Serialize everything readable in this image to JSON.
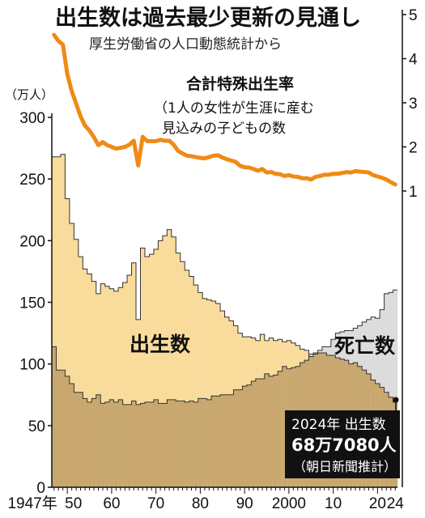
{
  "title": "出生数は過去最少更新の見通し",
  "subtitle": "厚生労働省の人口動態統計から",
  "chart_data": {
    "type": "bar",
    "y_unit_label": "（万人）",
    "y_left_ticks": [
      "0",
      "50",
      "100",
      "150",
      "200",
      "250",
      "300"
    ],
    "ylim_left": [
      0,
      300
    ],
    "y_right_ticks": [
      "1",
      "2",
      "3",
      "4",
      "5"
    ],
    "ylim_right": [
      1,
      5
    ],
    "x_tick_labels": [
      {
        "year": 1947,
        "label": "1947年"
      },
      {
        "year": 1950,
        "label": "50"
      },
      {
        "year": 1960,
        "label": "60"
      },
      {
        "year": 1970,
        "label": "70"
      },
      {
        "year": 1980,
        "label": "80"
      },
      {
        "year": 1990,
        "label": "90"
      },
      {
        "year": 2000,
        "label": "2000"
      },
      {
        "year": 2010,
        "label": "10"
      },
      {
        "year": 2020,
        "label": "20"
      },
      {
        "year": 2024,
        "label": "24"
      }
    ],
    "xlim": [
      1947,
      2024
    ],
    "grid": false,
    "years": [
      1947,
      1948,
      1949,
      1950,
      1951,
      1952,
      1953,
      1954,
      1955,
      1956,
      1957,
      1958,
      1959,
      1960,
      1961,
      1962,
      1963,
      1964,
      1965,
      1966,
      1967,
      1968,
      1969,
      1970,
      1971,
      1972,
      1973,
      1974,
      1975,
      1976,
      1977,
      1978,
      1979,
      1980,
      1981,
      1982,
      1983,
      1984,
      1985,
      1986,
      1987,
      1988,
      1989,
      1990,
      1991,
      1992,
      1993,
      1994,
      1995,
      1996,
      1997,
      1998,
      1999,
      2000,
      2001,
      2002,
      2003,
      2004,
      2005,
      2006,
      2007,
      2008,
      2009,
      2010,
      2011,
      2012,
      2013,
      2014,
      2015,
      2016,
      2017,
      2018,
      2019,
      2020,
      2021,
      2022,
      2023,
      2024
    ],
    "series": [
      {
        "name": "出生数",
        "color": "#f9dc9b",
        "values": [
          268,
          268,
          270,
          234,
          214,
          201,
          187,
          177,
          173,
          167,
          157,
          165,
          163,
          161,
          159,
          162,
          166,
          172,
          182,
          136,
          194,
          187,
          189,
          193,
          200,
          204,
          209,
          203,
          190,
          183,
          176,
          171,
          164,
          158,
          153,
          152,
          151,
          149,
          143,
          138,
          135,
          131,
          125,
          122,
          122,
          121,
          119,
          124,
          119,
          121,
          119,
          120,
          118,
          119,
          117,
          115,
          112,
          111,
          106,
          109,
          109,
          109,
          107,
          107,
          105,
          104,
          103,
          100,
          101,
          98,
          95,
          92,
          87,
          84,
          81,
          77,
          73,
          69
        ]
      },
      {
        "name": "死亡数",
        "color": "#dcdcdc",
        "values": [
          114,
          95,
          95,
          90,
          84,
          77,
          77,
          72,
          69,
          72,
          75,
          68,
          69,
          71,
          69,
          71,
          67,
          67,
          70,
          67,
          68,
          69,
          69,
          71,
          68,
          68,
          71,
          71,
          70,
          70,
          69,
          70,
          69,
          72,
          72,
          71,
          74,
          74,
          75,
          75,
          75,
          79,
          79,
          82,
          83,
          86,
          88,
          88,
          92,
          90,
          91,
          94,
          98,
          96,
          97,
          98,
          101,
          103,
          108,
          108,
          111,
          114,
          114,
          120,
          125,
          126,
          127,
          127,
          129,
          131,
          134,
          136,
          138,
          137,
          144,
          157,
          158,
          160
        ]
      },
      {
        "name": "合計特殊出生率",
        "axis": "right",
        "color": "#f08a16",
        "values": [
          4.54,
          4.4,
          4.32,
          3.65,
          3.26,
          2.98,
          2.69,
          2.48,
          2.37,
          2.22,
          2.04,
          2.11,
          2.04,
          2.0,
          1.96,
          1.98,
          2.0,
          2.05,
          2.14,
          1.58,
          2.23,
          2.13,
          2.13,
          2.13,
          2.16,
          2.14,
          2.14,
          2.05,
          1.91,
          1.85,
          1.8,
          1.79,
          1.77,
          1.75,
          1.74,
          1.77,
          1.8,
          1.81,
          1.76,
          1.72,
          1.69,
          1.66,
          1.57,
          1.54,
          1.53,
          1.5,
          1.46,
          1.5,
          1.42,
          1.43,
          1.39,
          1.38,
          1.34,
          1.36,
          1.33,
          1.32,
          1.29,
          1.29,
          1.26,
          1.32,
          1.34,
          1.37,
          1.37,
          1.39,
          1.39,
          1.41,
          1.43,
          1.42,
          1.45,
          1.44,
          1.43,
          1.42,
          1.36,
          1.33,
          1.3,
          1.26,
          1.2,
          1.15
        ]
      }
    ],
    "labels": {
      "births": "出生数",
      "deaths": "死亡数",
      "tfr": "合計特殊出生率",
      "tfr_note_line1": "（1人の女性が生涯に産む",
      "tfr_note_line2": "見込みの子どもの数"
    },
    "annotation": {
      "line1": "2024年 出生数",
      "line2": "68万7080人",
      "line3": "（朝日新聞推計）"
    }
  }
}
